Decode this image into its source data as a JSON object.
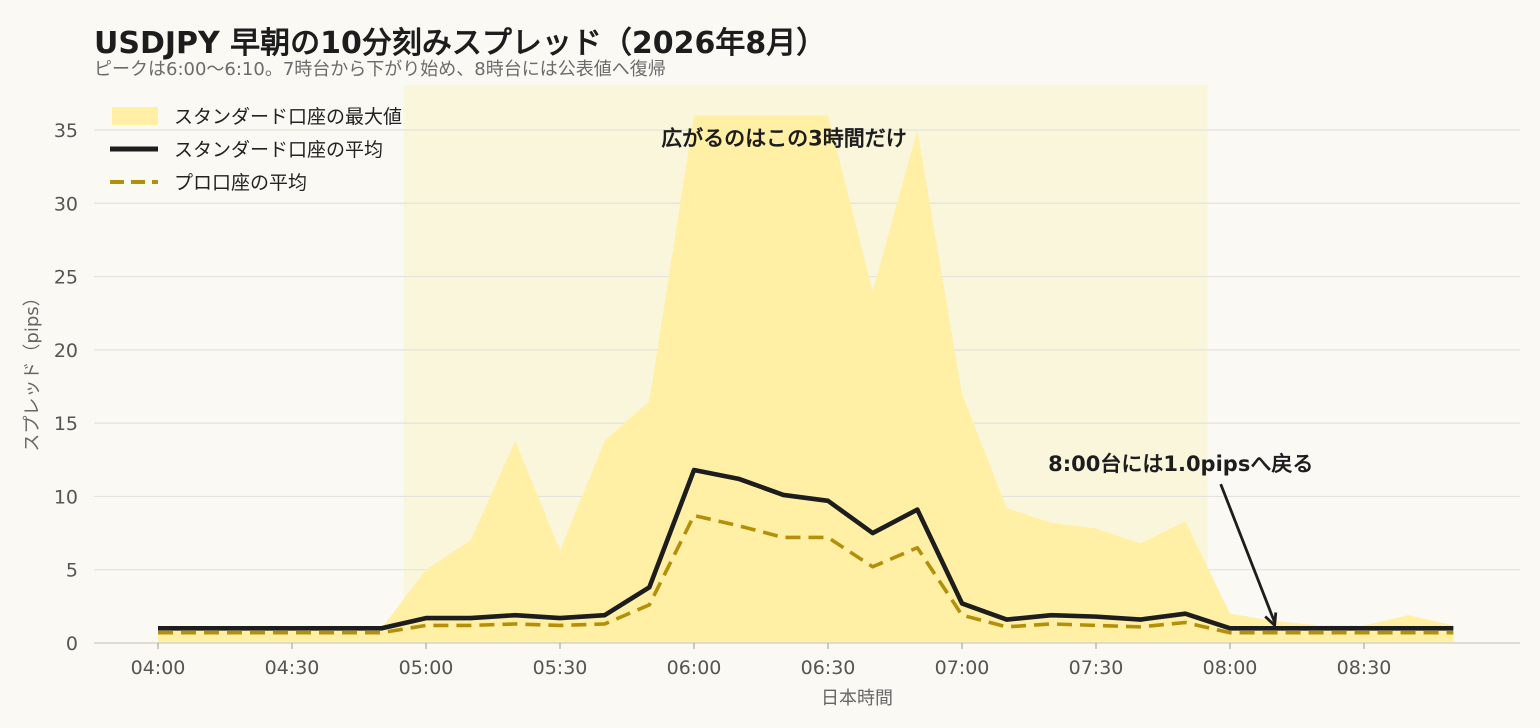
{
  "chart_data": {
    "type": "area",
    "title": "USDJPY 早朝の10分刻みスプレッド（2026年8月）",
    "subtitle": "ピークは6:00〜6:10。7時台から下がり始め、8時台には公表値へ復帰",
    "xlabel": "日本時間",
    "ylabel": "スプレッド（pips）",
    "ylim": [
      0,
      38
    ],
    "yticks": [
      0,
      5,
      10,
      15,
      20,
      25,
      30,
      35
    ],
    "xticks": [
      "04:00",
      "04:30",
      "05:00",
      "05:30",
      "06:00",
      "06:30",
      "07:00",
      "07:30",
      "08:00",
      "08:30"
    ],
    "x": [
      "04:00",
      "04:10",
      "04:20",
      "04:30",
      "04:40",
      "04:50",
      "05:00",
      "05:10",
      "05:20",
      "05:30",
      "05:40",
      "05:50",
      "06:00",
      "06:10",
      "06:20",
      "06:30",
      "06:40",
      "06:50",
      "07:00",
      "07:10",
      "07:20",
      "07:30",
      "07:40",
      "07:50",
      "08:00",
      "08:10",
      "08:20",
      "08:30",
      "08:40",
      "08:50"
    ],
    "highlight_band": {
      "from": "04:55",
      "to": "07:55",
      "color": "#faf6dc"
    },
    "grid": "horizontal",
    "legend_position": "top-left",
    "series": [
      {
        "name": "スタンダード口座の最大値",
        "kind": "area",
        "color": "#fff0a6",
        "values": [
          1.0,
          1.0,
          1.0,
          1.0,
          1.0,
          1.0,
          5.0,
          7.0,
          13.8,
          6.3,
          13.8,
          16.5,
          36.0,
          36.0,
          36.0,
          36.0,
          24.0,
          35.0,
          17.0,
          9.2,
          8.2,
          7.8,
          6.8,
          8.3,
          2.0,
          1.5,
          1.2,
          1.2,
          1.9,
          1.2
        ]
      },
      {
        "name": "スタンダード口座の平均",
        "kind": "line",
        "color": "#1d1d1d",
        "values": [
          1.0,
          1.0,
          1.0,
          1.0,
          1.0,
          1.0,
          1.7,
          1.7,
          1.9,
          1.7,
          1.9,
          3.8,
          11.8,
          11.2,
          10.1,
          9.7,
          7.5,
          9.1,
          2.7,
          1.6,
          1.9,
          1.8,
          1.6,
          2.0,
          1.0,
          1.0,
          1.0,
          1.0,
          1.0,
          1.0
        ]
      },
      {
        "name": "プロ口座の平均",
        "kind": "dashed-line",
        "color": "#b38f0a",
        "values": [
          0.7,
          0.7,
          0.7,
          0.7,
          0.7,
          0.7,
          1.2,
          1.2,
          1.3,
          1.2,
          1.3,
          2.6,
          8.7,
          8.0,
          7.2,
          7.2,
          5.2,
          6.5,
          1.9,
          1.1,
          1.3,
          1.2,
          1.1,
          1.4,
          0.7,
          0.7,
          0.7,
          0.7,
          0.7,
          0.7
        ]
      }
    ],
    "annotations": [
      {
        "text": "広がるのはこの3時間だけ",
        "x": "06:30",
        "y": 34.5
      },
      {
        "text": "8:00台には1.0pipsへ戻る",
        "x": "07:53",
        "y": 12.2,
        "arrow_to_x": "08:10",
        "arrow_to_y": 1.2
      }
    ]
  }
}
